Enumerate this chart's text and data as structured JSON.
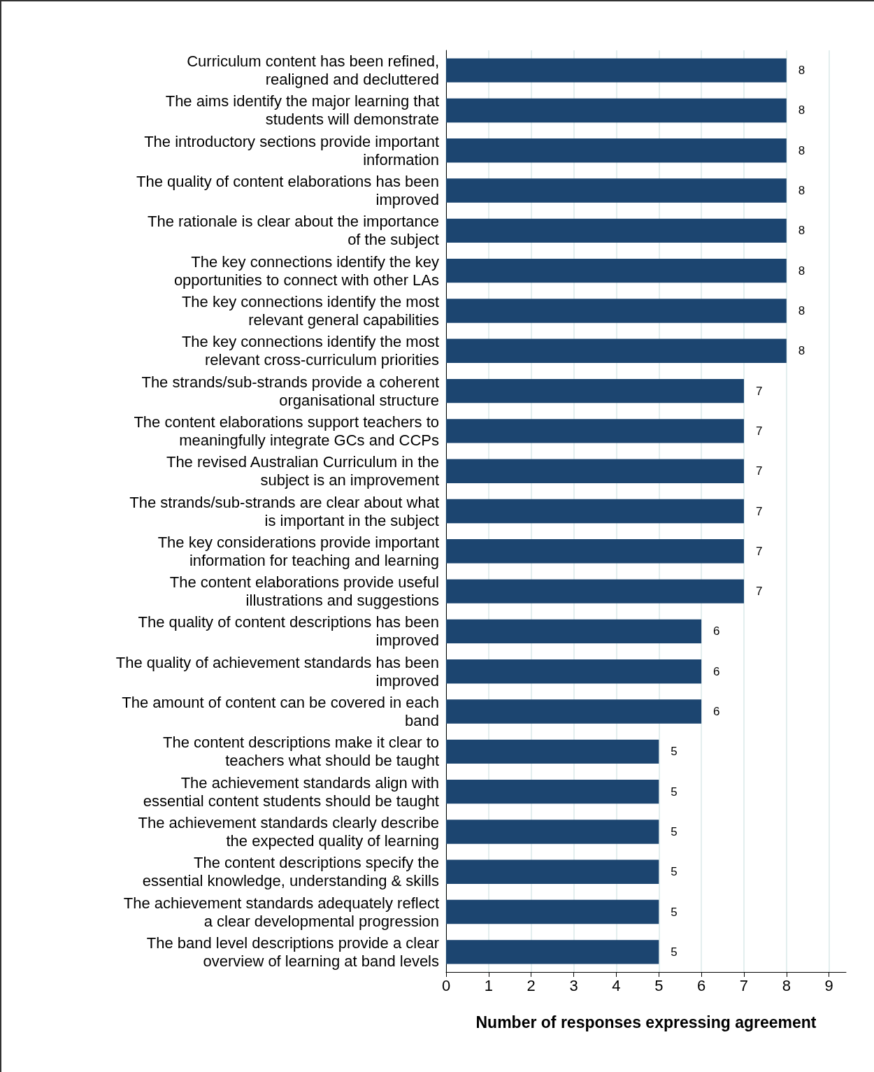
{
  "chart_data": {
    "type": "bar",
    "orientation": "horizontal",
    "xlabel": "Number of responses expressing agreement",
    "categories": [
      "Curriculum content has been refined,\nrealigned and decluttered",
      "The aims identify the major learning that\nstudents will demonstrate",
      "The introductory sections provide important\ninformation",
      "The quality of content elaborations has been\nimproved",
      "The rationale is clear about the importance\nof the subject",
      "The key connections identify the key\nopportunities to connect with other LAs",
      "The key connections identify the most\nrelevant general capabilities",
      "The key connections identify the most\nrelevant cross-curriculum priorities",
      "The strands/sub-strands provide a coherent\norganisational structure",
      "The content elaborations support teachers to\nmeaningfully integrate GCs and CCPs",
      "The revised Australian Curriculum in the\nsubject is an improvement",
      "The strands/sub-strands are clear about what\nis important in the subject",
      "The key considerations provide important\ninformation for teaching and learning",
      "The content elaborations provide useful\nillustrations and suggestions",
      "The quality of content descriptions has been\nimproved",
      "The quality of achievement standards has been\nimproved",
      "The amount of content can be covered in each\nband",
      "The content descriptions make it clear to\nteachers what should be taught",
      "The achievement standards align with\nessential content students should be taught",
      "The achievement standards clearly describe\nthe expected quality of learning",
      "The content descriptions specify the\nessential knowledge, understanding & skills",
      "The achievement standards adequately reflect\na clear developmental progression",
      "The band level descriptions provide a clear\noverview of learning at band levels"
    ],
    "values": [
      8,
      8,
      8,
      8,
      8,
      8,
      8,
      8,
      7,
      7,
      7,
      7,
      7,
      7,
      6,
      6,
      6,
      5,
      5,
      5,
      5,
      5,
      5
    ],
    "color": "#1c4570",
    "xlim": [
      0,
      9.4
    ],
    "xticks": [
      0,
      1,
      2,
      3,
      4,
      5,
      6,
      7,
      8,
      9
    ],
    "grid": "x",
    "data_labels": true
  }
}
